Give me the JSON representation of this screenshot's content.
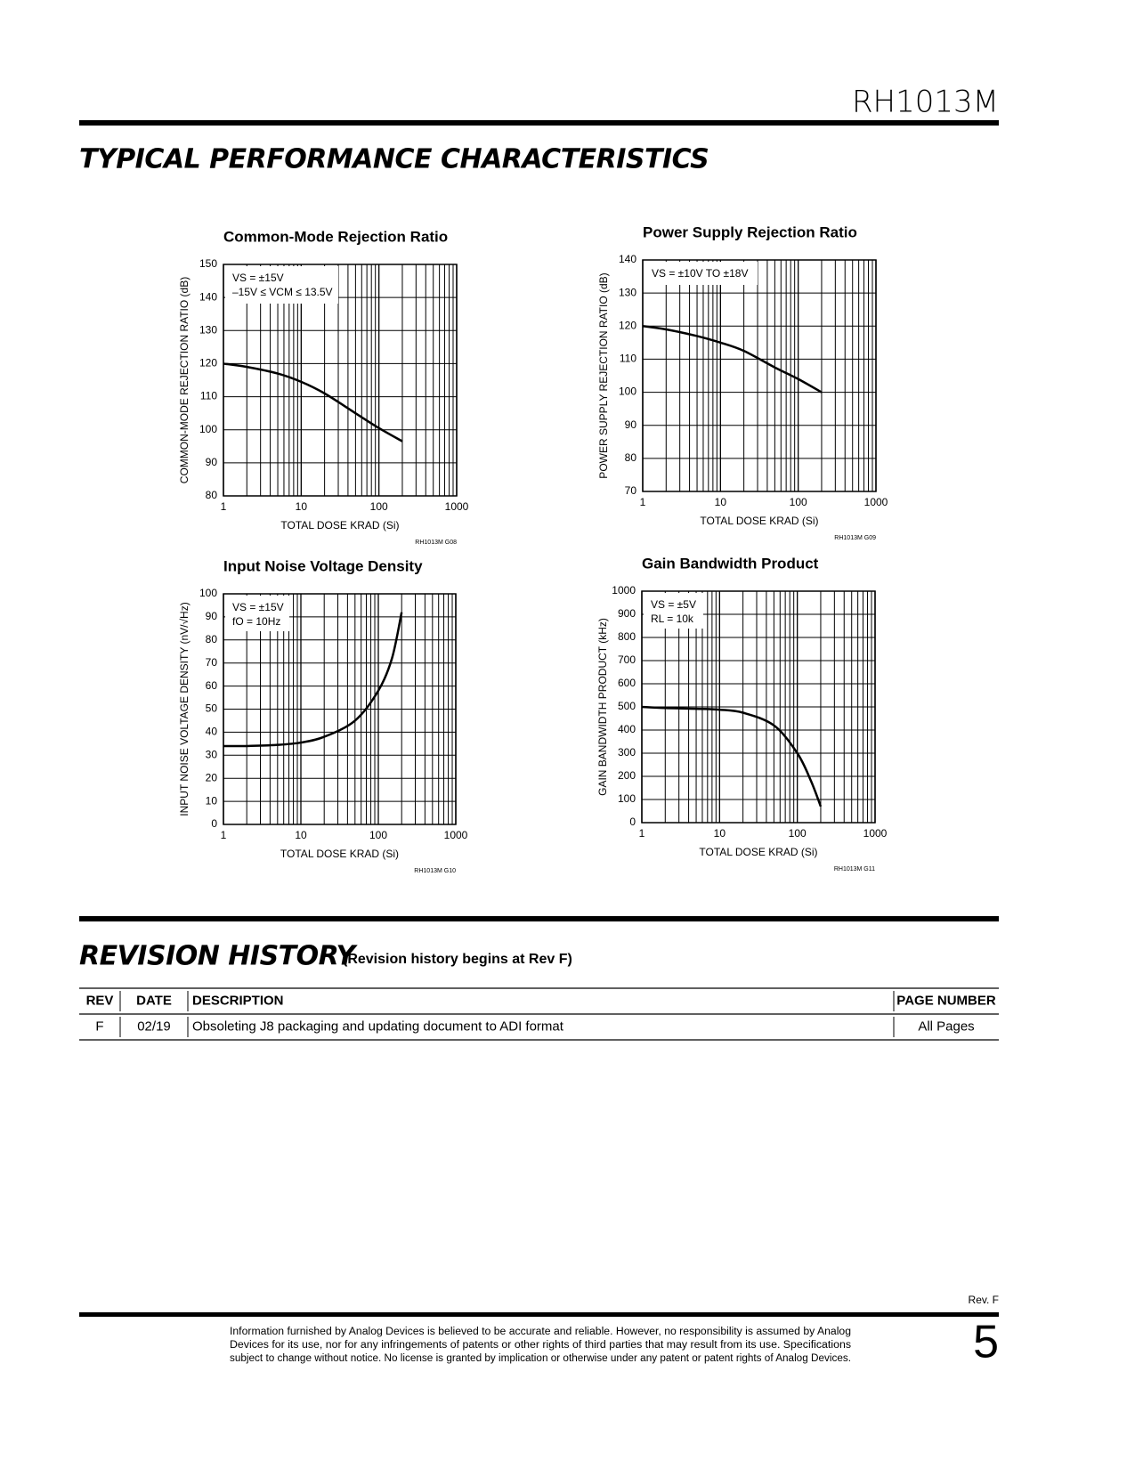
{
  "header": {
    "part": "RH1013M"
  },
  "sections": {
    "performance": "TYPICAL PERFORMANCE CHARACTERISTICS",
    "revision": "REVISION HISTORY",
    "revision_note": "(Revision history begins at Rev F)"
  },
  "chart_data": [
    {
      "type": "line",
      "title": "Common-Mode Rejection Ratio",
      "xlabel": "TOTAL DOSE KRAD (Si)",
      "ylabel": "COMMON-MODE REJECTION RATIO (dB)",
      "code": "RH1013M G08",
      "annotation": [
        "VS = ±15V",
        "–15V ≤ VCM ≤ 13.5V"
      ],
      "x": [
        1,
        2,
        5,
        10,
        20,
        50,
        100,
        200
      ],
      "series": [
        {
          "color": "#000000",
          "values": [
            120,
            119,
            117,
            114.5,
            111,
            105,
            100.5,
            96.5
          ]
        }
      ],
      "xscale": "log",
      "grid": true,
      "xlim": [
        1,
        1000
      ],
      "xticks": [
        1,
        10,
        100,
        1000
      ],
      "xminor_ticks": [
        2,
        3,
        4,
        5,
        6,
        7,
        8,
        9,
        20,
        30,
        40,
        50,
        60,
        70,
        80,
        90,
        200,
        300,
        400,
        500,
        600,
        700,
        800,
        900
      ],
      "ylim": [
        80,
        150
      ],
      "yticks": [
        80,
        90,
        100,
        110,
        120,
        130,
        140,
        150
      ]
    },
    {
      "type": "line",
      "title": "Power Supply Rejection Ratio",
      "xlabel": "TOTAL DOSE KRAD (Si)",
      "ylabel": "POWER SUPPLY REJECTION RATIO (dB)",
      "code": "RH1013M G09",
      "annotation": [
        "VS = ±10V TO ±18V"
      ],
      "x": [
        1,
        2,
        5,
        10,
        20,
        50,
        100,
        200
      ],
      "series": [
        {
          "color": "#000000",
          "values": [
            120,
            119,
            117,
            115,
            112.5,
            107.5,
            104,
            100
          ]
        }
      ],
      "xscale": "log",
      "grid": true,
      "xlim": [
        1,
        1000
      ],
      "xticks": [
        1,
        10,
        100,
        1000
      ],
      "xminor_ticks": [
        2,
        3,
        4,
        5,
        6,
        7,
        8,
        9,
        20,
        30,
        40,
        50,
        60,
        70,
        80,
        90,
        200,
        300,
        400,
        500,
        600,
        700,
        800,
        900
      ],
      "ylim": [
        70,
        140
      ],
      "yticks": [
        70,
        80,
        90,
        100,
        110,
        120,
        130,
        140
      ]
    },
    {
      "type": "line",
      "title": "Input Noise Voltage Density",
      "xlabel": "TOTAL DOSE KRAD (Si)",
      "ylabel": "INPUT NOISE VOLTAGE DENSITY (nV/√Hz)",
      "code": "RH1013M G10",
      "annotation": [
        "VS = ±15V",
        "fO = 10Hz"
      ],
      "x": [
        1,
        2,
        5,
        10,
        20,
        50,
        100,
        150,
        200
      ],
      "series": [
        {
          "color": "#000000",
          "values": [
            34,
            34,
            34.5,
            35.5,
            38,
            45,
            58,
            72,
            92
          ]
        }
      ],
      "xscale": "log",
      "grid": true,
      "xlim": [
        1,
        1000
      ],
      "xticks": [
        1,
        10,
        100,
        1000
      ],
      "xminor_ticks": [
        2,
        3,
        4,
        5,
        6,
        7,
        8,
        9,
        20,
        30,
        40,
        50,
        60,
        70,
        80,
        90,
        200,
        300,
        400,
        500,
        600,
        700,
        800,
        900
      ],
      "ylim": [
        0,
        100
      ],
      "yticks": [
        0,
        10,
        20,
        30,
        40,
        50,
        60,
        70,
        80,
        90,
        100
      ]
    },
    {
      "type": "line",
      "title": "Gain Bandwidth Product",
      "xlabel": "TOTAL DOSE KRAD (Si)",
      "ylabel": "GAIN BANDWIDTH PRODUCT (kHz)",
      "code": "RH1013M G11",
      "annotation": [
        "VS = ±5V",
        "RL = 10k"
      ],
      "x": [
        1,
        2,
        5,
        10,
        20,
        50,
        100,
        150,
        200
      ],
      "series": [
        {
          "color": "#000000",
          "values": [
            500,
            495,
            492,
            488,
            475,
            420,
            300,
            180,
            70
          ]
        }
      ],
      "xscale": "log",
      "grid": true,
      "xlim": [
        1,
        1000
      ],
      "xticks": [
        1,
        10,
        100,
        1000
      ],
      "xminor_ticks": [
        2,
        3,
        4,
        5,
        6,
        7,
        8,
        9,
        20,
        30,
        40,
        50,
        60,
        70,
        80,
        90,
        200,
        300,
        400,
        500,
        600,
        700,
        800,
        900
      ],
      "ylim": [
        0,
        1000
      ],
      "yticks": [
        0,
        100,
        200,
        300,
        400,
        500,
        600,
        700,
        800,
        900,
        1000
      ]
    }
  ],
  "table": {
    "header": [
      "REV",
      "DATE",
      "DESCRIPTION",
      "PAGE NUMBER"
    ],
    "rows": [
      [
        "F",
        "02/19",
        "Obsoleting J8 packaging and updating document to ADI format",
        "All Pages"
      ]
    ]
  },
  "footer": {
    "rev": "Rev. F",
    "disclaimer": [
      "Information furnished by Analog Devices is believed to be accurate and reliable. However, no responsibility is assumed by Analog",
      "Devices for its use, nor for any infringements of patents or other rights of third parties that may result from its use. Specifications",
      "subject to change without notice. No license is granted by implication or otherwise under any patent or patent rights of Analog Devices."
    ],
    "page": "5"
  }
}
